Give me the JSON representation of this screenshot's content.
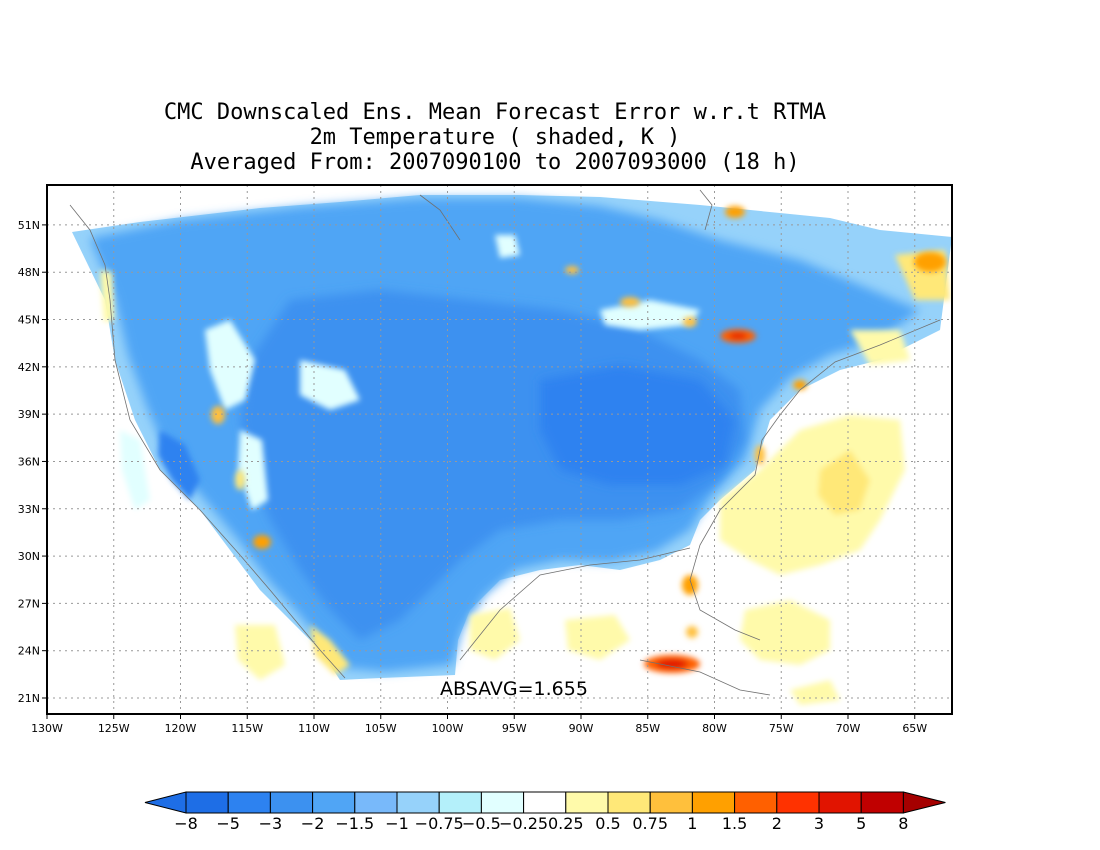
{
  "title": {
    "line1": "CMC Downscaled Ens. Mean Forecast Error w.r.t RTMA",
    "line2": "2m Temperature ( shaded, K )",
    "line3": "Averaged From: 2007090100 to 2007093000 (18 h)"
  },
  "annotation": "ABSAVG=1.655",
  "map": {
    "lon_range": [
      -130,
      -62
    ],
    "lat_range": [
      20,
      52
    ],
    "lat_ticks": [
      {
        "value": 51,
        "label": "51N"
      },
      {
        "value": 48,
        "label": "48N"
      },
      {
        "value": 45,
        "label": "45N"
      },
      {
        "value": 42,
        "label": "42N"
      },
      {
        "value": 39,
        "label": "39N"
      },
      {
        "value": 36,
        "label": "36N"
      },
      {
        "value": 33,
        "label": "33N"
      },
      {
        "value": 30,
        "label": "30N"
      },
      {
        "value": 27,
        "label": "27N"
      },
      {
        "value": 24,
        "label": "24N"
      },
      {
        "value": 21,
        "label": "21N"
      }
    ],
    "lon_ticks": [
      {
        "value": -130,
        "label": "130W"
      },
      {
        "value": -125,
        "label": "125W"
      },
      {
        "value": -120,
        "label": "120W"
      },
      {
        "value": -115,
        "label": "115W"
      },
      {
        "value": -110,
        "label": "110W"
      },
      {
        "value": -105,
        "label": "105W"
      },
      {
        "value": -100,
        "label": "100W"
      },
      {
        "value": -95,
        "label": "95W"
      },
      {
        "value": -90,
        "label": "90W"
      },
      {
        "value": -85,
        "label": "85W"
      },
      {
        "value": -80,
        "label": "80W"
      },
      {
        "value": -75,
        "label": "75W"
      },
      {
        "value": -70,
        "label": "70W"
      },
      {
        "value": -65,
        "label": "65W"
      }
    ],
    "grid": "dotted"
  },
  "colorbar": {
    "labels": [
      "-8",
      "-5",
      "-3",
      "-2",
      "-1.5",
      "-1",
      "-0.75",
      "-0.5",
      "-0.25",
      "0.25",
      "0.5",
      "0.75",
      "1",
      "1.5",
      "2",
      "3",
      "5",
      "8"
    ],
    "colors": [
      "#1e6ee6",
      "#1e6ee6",
      "#2d82f0",
      "#3c91f0",
      "#50a5f5",
      "#78b9fa",
      "#96d2fa",
      "#b4f0fa",
      "#e1ffff",
      "#ffffff",
      "#fffaaa",
      "#ffe878",
      "#ffc03c",
      "#ffa000",
      "#ff6000",
      "#ff3200",
      "#e11400",
      "#c00000",
      "#a50000"
    ]
  }
}
